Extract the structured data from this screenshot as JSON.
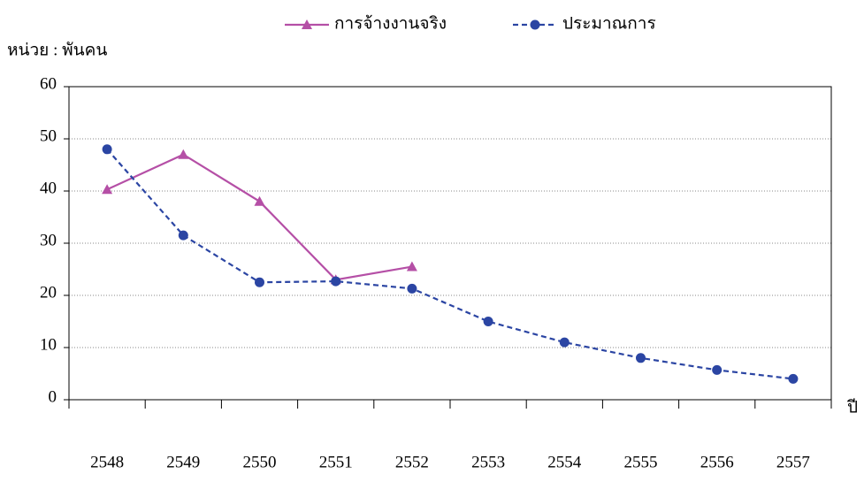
{
  "chart_data": {
    "type": "line",
    "y_label": "หน่วย : พันคน",
    "x_label": "ปี",
    "categories": [
      "2548",
      "2549",
      "2550",
      "2551",
      "2552",
      "2553",
      "2554",
      "2555",
      "2556",
      "2557"
    ],
    "series": [
      {
        "name": "การจ้างงานจริง",
        "color": "#b54fa6",
        "marker": "triangle",
        "dash": false,
        "values": [
          40.3,
          47,
          38,
          23,
          25.5,
          null,
          null,
          null,
          null,
          null
        ]
      },
      {
        "name": "ประมาณการ",
        "color": "#2b45a3",
        "marker": "circle",
        "dash": true,
        "values": [
          48,
          31.5,
          22.5,
          22.7,
          21.3,
          15,
          11,
          8,
          5.7,
          4
        ]
      }
    ],
    "ylim": [
      0,
      60
    ],
    "yticks": [
      0,
      10,
      20,
      30,
      40,
      50,
      60
    ],
    "grid": true
  }
}
